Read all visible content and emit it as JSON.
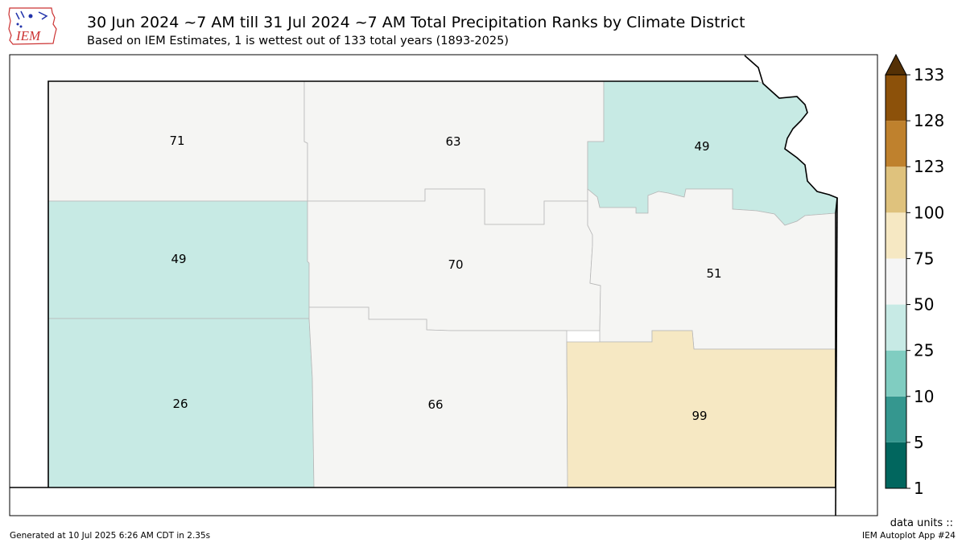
{
  "header": {
    "logo_text": "IEM",
    "title": "30 Jun 2024 ~7 AM till 31 Jul 2024 ~7 AM Total Precipitation Ranks by Climate District",
    "subtitle": "Based on IEM Estimates, 1 is wettest out of 133 total years (1893-2025)"
  },
  "districts": [
    {
      "id": "northwest",
      "value": "71",
      "color": "#f5f5f3"
    },
    {
      "id": "north-central",
      "value": "63",
      "color": "#f5f5f3"
    },
    {
      "id": "northeast",
      "value": "49",
      "color": "#c7eae4"
    },
    {
      "id": "west-central",
      "value": "49",
      "color": "#c7eae4"
    },
    {
      "id": "central",
      "value": "70",
      "color": "#f5f5f3"
    },
    {
      "id": "east-central",
      "value": "51",
      "color": "#f5f5f3"
    },
    {
      "id": "southwest",
      "value": "26",
      "color": "#c7eae4"
    },
    {
      "id": "south-central",
      "value": "66",
      "color": "#f5f5f3"
    },
    {
      "id": "southeast",
      "value": "99",
      "color": "#f6e8c3"
    }
  ],
  "colorbar": {
    "bins": [
      {
        "from": 1,
        "to": 5,
        "color": "#01665e"
      },
      {
        "from": 5,
        "to": 10,
        "color": "#35978f"
      },
      {
        "from": 10,
        "to": 25,
        "color": "#80cdc1"
      },
      {
        "from": 25,
        "to": 50,
        "color": "#c7eae5"
      },
      {
        "from": 50,
        "to": 75,
        "color": "#f5f5f5"
      },
      {
        "from": 75,
        "to": 100,
        "color": "#f6e8c3"
      },
      {
        "from": 100,
        "to": 123,
        "color": "#dfc27d"
      },
      {
        "from": 123,
        "to": 128,
        "color": "#bf812d"
      },
      {
        "from": 128,
        "to": 133,
        "color": "#8c510a"
      }
    ],
    "extend_color": "#543005",
    "ticks": [
      "1",
      "5",
      "10",
      "25",
      "50",
      "75",
      "100",
      "123",
      "128",
      "133"
    ]
  },
  "footer": {
    "units": "data units ::",
    "generated": "Generated at 10 Jul 2025 6:26 AM CDT in 2.35s",
    "app": "IEM Autoplot App #24"
  }
}
